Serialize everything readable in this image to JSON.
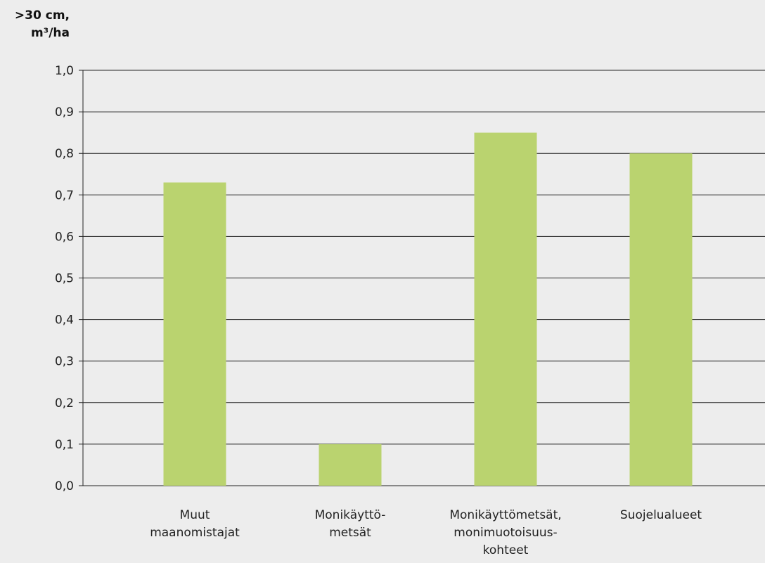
{
  "chart_data": {
    "type": "bar",
    "ylabel_lines": [
      ">30 cm,",
      "m³/ha"
    ],
    "categories": [
      [
        "Muut",
        "maanomistajat"
      ],
      [
        "Monikäyttö-",
        "metsät"
      ],
      [
        "Monikäyttömetsät,",
        "monimuotoisuus-",
        "kohteet"
      ],
      [
        "Suojelualueet"
      ]
    ],
    "values": [
      0.73,
      0.1,
      0.85,
      0.8
    ],
    "yticks": [
      "0,0",
      "0,1",
      "0,2",
      "0,3",
      "0,4",
      "0,5",
      "0,6",
      "0,7",
      "0,8",
      "0,9",
      "1,0"
    ],
    "ylim": [
      0,
      1.0
    ],
    "grid": true,
    "bar_color": "#bad36f",
    "grid_color": "#222222"
  }
}
